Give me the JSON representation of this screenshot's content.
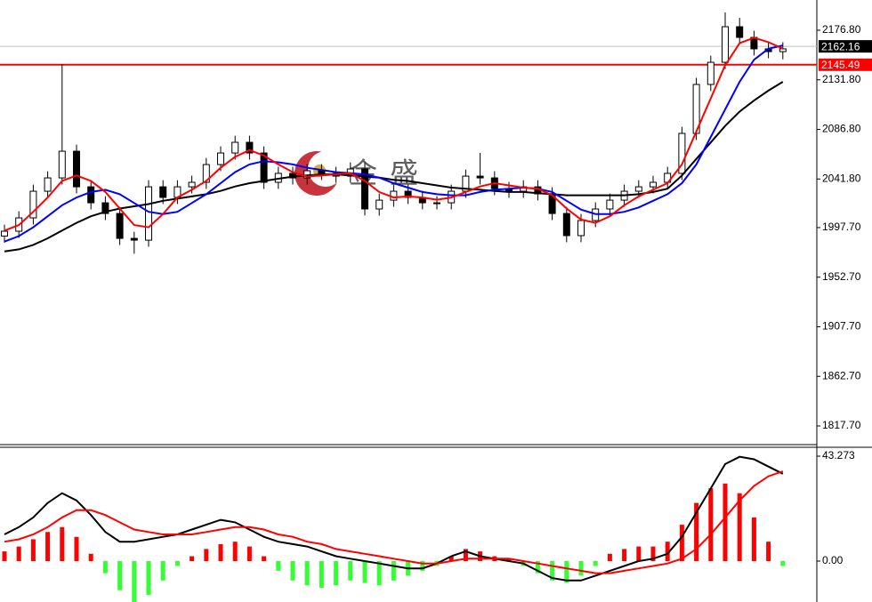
{
  "watermark": "金盛",
  "chart_data": [
    {
      "type": "candlestick",
      "ylim": [
        1800.75,
        2204.24
      ],
      "yticks": [
        {
          "value": 2176.8,
          "label": "2176.80"
        },
        {
          "value": 2131.8,
          "label": "2131.80"
        },
        {
          "value": 2086.8,
          "label": "2086.80"
        },
        {
          "value": 2041.8,
          "label": "2041.80"
        },
        {
          "value": 1997.7,
          "label": "1997.70"
        },
        {
          "value": 1952.7,
          "label": "1952.70"
        },
        {
          "value": 1907.7,
          "label": "1907.70"
        },
        {
          "value": 1862.7,
          "label": "1862.70"
        },
        {
          "value": 1817.7,
          "label": "1817.70"
        }
      ],
      "up_color": "#ffffff",
      "down_color": "#000000",
      "open": [
        1990,
        1994.4,
        2006.5,
        2030.7,
        2042.8,
        2067.0,
        2034.7,
        2020.2,
        2010.5,
        1987.9,
        1986.3,
        2034.7,
        2025.1,
        2034.7,
        2038.8,
        2054.9,
        2065.4,
        2075.1,
        2065.4,
        2038.8,
        2046.9,
        2042.8,
        2049.3,
        2046.9,
        2044.4,
        2050.9,
        2014.6,
        2022.6,
        2030.7,
        2025.1,
        2020.2,
        2020.2,
        2030.7,
        2044.4,
        2042.8,
        2033.1,
        2030.7,
        2034.7,
        2028.3,
        2010.5,
        1990.4,
        2004.1,
        2014.6,
        2022.6,
        2030.7,
        2034.7,
        2038.8,
        2046.9,
        2083.2,
        2127.6,
        2147.7,
        2180.0,
        2170.3,
        2159.9,
        2157.4
      ],
      "high": [
        2000.4,
        2012.5,
        2036.7,
        2048.8,
        2146.1,
        2073.0,
        2040.7,
        2026.2,
        2016.5,
        1993.9,
        2040.7,
        2040.7,
        2040.7,
        2044.8,
        2060.9,
        2071.4,
        2081.1,
        2081.1,
        2071.4,
        2052.9,
        2052.9,
        2055.3,
        2055.3,
        2052.9,
        2056.9,
        2056.9,
        2028.6,
        2036.7,
        2036.7,
        2031.1,
        2026.2,
        2036.7,
        2050.4,
        2065.4,
        2048.8,
        2039.1,
        2040.7,
        2040.7,
        2034.3,
        2016.5,
        2010.1,
        2020.6,
        2028.6,
        2036.7,
        2040.7,
        2044.8,
        2052.9,
        2089.2,
        2133.6,
        2153.7,
        2192.9,
        2188.0,
        2176.3,
        2165.9,
        2165.9
      ],
      "low": [
        1984,
        1988.4,
        2000.5,
        2024.7,
        2036.8,
        2028.7,
        2014.2,
        2004.5,
        1981.9,
        1974,
        1980.3,
        2019.1,
        2019.1,
        2028.7,
        2032.8,
        2048.9,
        2059.4,
        2059.4,
        2032.8,
        2032.8,
        2036.8,
        2036.8,
        2040.9,
        2038.4,
        2038.4,
        2008.6,
        2008.6,
        2016.6,
        2019.1,
        2014.2,
        2014.2,
        2014.2,
        2024.7,
        2036.8,
        2027.1,
        2024.7,
        2024.7,
        2022.3,
        2004.5,
        1984.4,
        1984.4,
        1998.1,
        2008.6,
        2016.6,
        2024.7,
        2028.7,
        2032.8,
        2040.9,
        2077.2,
        2121.6,
        2141.7,
        2164.3,
        2153.9,
        2151.4,
        2150.4
      ],
      "close": [
        1994.4,
        2006.5,
        2030.7,
        2042.8,
        2067.0,
        2034.7,
        2020.2,
        2010.5,
        1987.9,
        1986.3,
        2034.7,
        2025.1,
        2034.7,
        2038.8,
        2054.9,
        2065.4,
        2075.1,
        2065.4,
        2038.8,
        2046.9,
        2042.8,
        2049.3,
        2046.9,
        2044.4,
        2050.9,
        2014.6,
        2022.6,
        2030.7,
        2025.1,
        2020.2,
        2020.2,
        2030.7,
        2044.4,
        2042.8,
        2033.1,
        2030.7,
        2034.7,
        2028.3,
        2010.5,
        1990.4,
        2004.1,
        2014.6,
        2022.6,
        2030.7,
        2034.7,
        2038.8,
        2046.9,
        2083.2,
        2127.6,
        2147.7,
        2180.0,
        2170.3,
        2159.9,
        2157.4,
        2159.9
      ],
      "series": [
        {
          "color": "#000000",
          "values": [
            1976,
            1978,
            1982,
            1988,
            1995,
            2002,
            2008,
            2012,
            2015,
            2017,
            2019,
            2022,
            2024,
            2026,
            2028,
            2031,
            2035,
            2038,
            2040,
            2042,
            2044,
            2045,
            2046,
            2046,
            2045,
            2044,
            2043,
            2041,
            2040,
            2038,
            2036,
            2034,
            2033,
            2032,
            2031,
            2030,
            2030,
            2029,
            2028,
            2027,
            2027,
            2027,
            2027,
            2027,
            2028,
            2030,
            2033,
            2045,
            2060,
            2075,
            2090,
            2103,
            2113,
            2122,
            2130
          ]
        },
        {
          "color": "#0000ff",
          "values": [
            1985,
            1990,
            1998,
            2008,
            2018,
            2025,
            2030,
            2032,
            2028,
            2020,
            2012,
            2010,
            2012,
            2020,
            2028,
            2038,
            2048,
            2055,
            2058,
            2057,
            2055,
            2052,
            2050,
            2048,
            2047,
            2046,
            2043,
            2038,
            2034,
            2030,
            2028,
            2027,
            2027,
            2030,
            2032,
            2033,
            2034,
            2033,
            2030,
            2022,
            2014,
            2010,
            2010,
            2012,
            2016,
            2022,
            2028,
            2038,
            2055,
            2080,
            2105,
            2130,
            2150,
            2160,
            2163
          ]
        },
        {
          "color": "#ff0000",
          "values": [
            1995,
            2000,
            2012,
            2025,
            2040,
            2045,
            2040,
            2030,
            2015,
            2000,
            1998,
            2010,
            2025,
            2032,
            2040,
            2052,
            2062,
            2068,
            2063,
            2055,
            2048,
            2044,
            2045,
            2046,
            2047,
            2040,
            2030,
            2025,
            2026,
            2025,
            2023,
            2025,
            2030,
            2035,
            2038,
            2036,
            2034,
            2033,
            2027,
            2015,
            2005,
            2002,
            2008,
            2018,
            2026,
            2032,
            2038,
            2055,
            2085,
            2115,
            2145,
            2165,
            2170,
            2166,
            2160
          ]
        }
      ],
      "price_lines": [
        {
          "value": 2162.16,
          "color": "#000000",
          "line_color": "#c0c0c0"
        },
        {
          "value": 2145.49,
          "color": "#ff0000",
          "line_color": "#ff0000"
        }
      ]
    },
    {
      "type": "macd",
      "ylim": [
        -16.87,
        46.94
      ],
      "yticks": [
        43.273,
        {
          "value": 0,
          "label": "0.00"
        }
      ],
      "hist_colors": [
        "#ff0000",
        "#33ff33"
      ],
      "histogram": [
        4,
        6,
        9,
        12,
        14,
        10,
        3,
        -5,
        -12,
        -17,
        -14,
        -8,
        -2,
        2,
        5,
        7,
        8,
        6,
        2,
        -4,
        -8,
        -10,
        -11,
        -10,
        -8,
        -9,
        -10,
        -8,
        -6,
        -4,
        -2,
        2,
        5,
        4,
        2,
        1,
        -2,
        -5,
        -8,
        -9,
        -6,
        -2,
        3,
        5,
        6,
        6,
        8,
        15,
        24,
        30,
        32,
        28,
        18,
        8,
        -2
      ],
      "series": [
        {
          "color": "#000000",
          "values": [
            11,
            14,
            18,
            24,
            28,
            25,
            19,
            12,
            8,
            8,
            9,
            10,
            11,
            13,
            15,
            17,
            16,
            13,
            10,
            8,
            7,
            6,
            4,
            2,
            1,
            0,
            -1,
            -2,
            -3,
            -3,
            -1,
            2,
            4,
            2,
            1,
            0,
            -1,
            -4,
            -7,
            -8,
            -8,
            -6,
            -4,
            -2,
            0,
            1,
            3,
            10,
            20,
            30,
            40,
            43,
            42,
            39,
            36
          ]
        },
        {
          "color": "#ff0000",
          "values": [
            8,
            9,
            11,
            14,
            18,
            21,
            21,
            19,
            16,
            13,
            12,
            11,
            11,
            11,
            12,
            13,
            14,
            14,
            13,
            11,
            10,
            8,
            7,
            5,
            4,
            3,
            2,
            1,
            0,
            -1,
            -1,
            0,
            1,
            1,
            1,
            1,
            0,
            -1,
            -2,
            -3,
            -4,
            -5,
            -5,
            -4,
            -3,
            -2,
            -1,
            1,
            5,
            11,
            18,
            25,
            31,
            35,
            37
          ]
        }
      ]
    }
  ]
}
